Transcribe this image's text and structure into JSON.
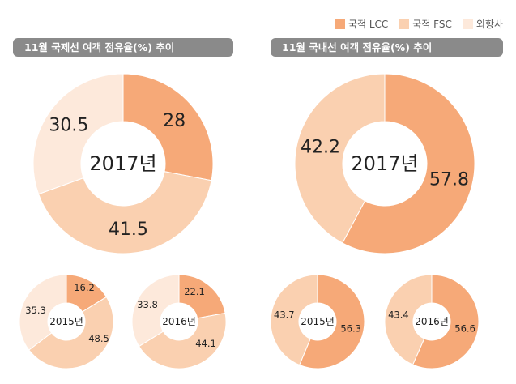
{
  "legend": [
    {
      "label": "국적 LCC",
      "color": "#F6A978"
    },
    {
      "label": "국적 FSC",
      "color": "#FAD0B0"
    },
    {
      "label": "외항사",
      "color": "#FDE9DB"
    }
  ],
  "titles": {
    "international": "11월 국제선 여객 점유율(%) 추이",
    "domestic": "11월 국내선 여객 점유율(%) 추이"
  },
  "colors": {
    "lcc": "#F6A978",
    "fsc": "#FAD0B0",
    "foreign": "#FDE9DB"
  },
  "chart_data": [
    {
      "type": "pie",
      "group": "international",
      "center_label": "2017년",
      "categories": [
        "국적 LCC",
        "국적 FSC",
        "외항사"
      ],
      "values": [
        28,
        41.5,
        30.5
      ]
    },
    {
      "type": "pie",
      "group": "international",
      "center_label": "2015년",
      "categories": [
        "국적 LCC",
        "국적 FSC",
        "외항사"
      ],
      "values": [
        16.2,
        48.5,
        35.3
      ]
    },
    {
      "type": "pie",
      "group": "international",
      "center_label": "2016년",
      "categories": [
        "국적 LCC",
        "국적 FSC",
        "외항사"
      ],
      "values": [
        22.1,
        44.1,
        33.8
      ]
    },
    {
      "type": "pie",
      "group": "domestic",
      "center_label": "2017년",
      "categories": [
        "국적 LCC",
        "국적 FSC"
      ],
      "values": [
        57.8,
        42.2
      ]
    },
    {
      "type": "pie",
      "group": "domestic",
      "center_label": "2015년",
      "categories": [
        "국적 LCC",
        "국적 FSC"
      ],
      "values": [
        56.3,
        43.7
      ]
    },
    {
      "type": "pie",
      "group": "domestic",
      "center_label": "2016년",
      "categories": [
        "국적 LCC",
        "국적 FSC"
      ],
      "values": [
        56.6,
        43.4
      ]
    }
  ]
}
